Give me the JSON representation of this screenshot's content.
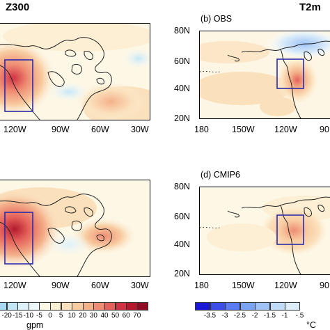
{
  "figure": {
    "left_column_title": "Z300",
    "right_column_title": "T2m",
    "panel_b_label": "(b) OBS",
    "panel_d_label": "(d) CMIP6",
    "left_lon_ticks": [
      "120W",
      "90W",
      "60W",
      "30W"
    ],
    "right_lon_ticks": [
      "180",
      "150W",
      "120W",
      "90"
    ],
    "lat_ticks": [
      "80N",
      "60N",
      "40N",
      "20N"
    ],
    "colorbar_left": {
      "labels": [
        "-20",
        "-15",
        "-10",
        "-5",
        "0",
        "5",
        "10",
        "20",
        "30",
        "40",
        "50",
        "60",
        "70"
      ],
      "unit": "gpm",
      "colors": [
        "#a8d9f3",
        "#c4e7f7",
        "#ddf1f9",
        "#eef8fb",
        "#fbf9e6",
        "#fcefd3",
        "#fbe0bc",
        "#f8cba0",
        "#f4b28b",
        "#ef8d74",
        "#e5625b",
        "#d23344",
        "#b41a2e",
        "#8e0d22"
      ]
    },
    "colorbar_right": {
      "labels": [
        "-3.5",
        "-3",
        "-2.5",
        "-2",
        "-1.5",
        "-1",
        "-.5"
      ],
      "unit": "°C",
      "colors": [
        "#1a1ad6",
        "#3b4ee8",
        "#5a7cf0",
        "#7aa3f4",
        "#9fc3f7",
        "#bedcf9",
        "#dcedf9"
      ]
    },
    "box_color": "#2a2aa8"
  }
}
